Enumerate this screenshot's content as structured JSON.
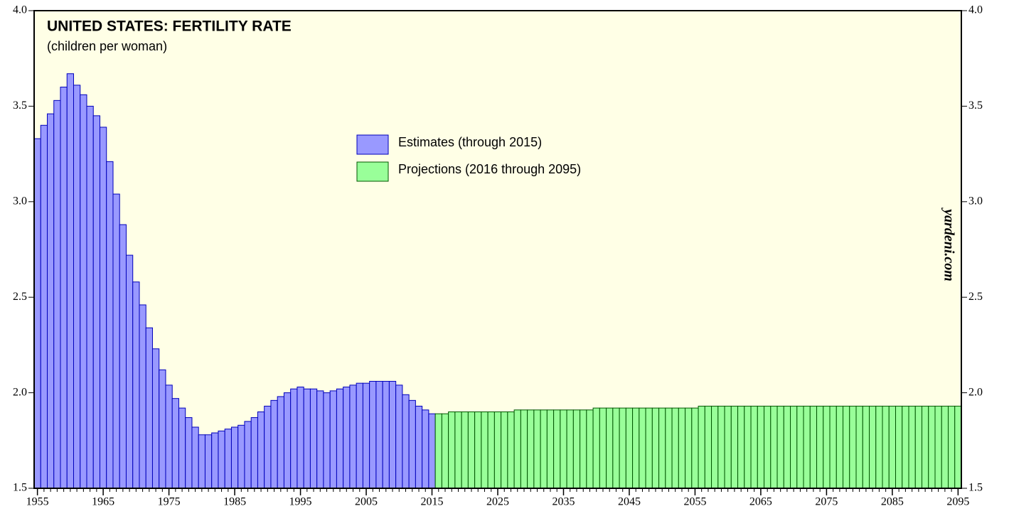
{
  "chart_data": {
    "type": "bar",
    "title": "UNITED STATES: FERTILITY RATE",
    "subtitle": "(children per woman)",
    "annotation": "yardeni.com",
    "xlim": [
      1954.5,
      2095.5
    ],
    "xticks": [
      1955,
      1965,
      1975,
      1985,
      1995,
      2005,
      2015,
      2025,
      2035,
      2045,
      2055,
      2065,
      2075,
      2085,
      2095
    ],
    "ylim": [
      1.5,
      4.0
    ],
    "yticks": [
      1.5,
      {
        "value": 2,
        "label": "2.0"
      },
      2.5,
      {
        "value": 3,
        "label": "3.0"
      },
      3.5,
      {
        "value": 4,
        "label": "4.0"
      }
    ],
    "legend": "top",
    "series": [
      {
        "name": "Estimates (through 2015)",
        "color": "#9999ff",
        "edge": "#0000bb",
        "x": [
          1955,
          1956,
          1957,
          1958,
          1959,
          1960,
          1961,
          1962,
          1963,
          1964,
          1965,
          1966,
          1967,
          1968,
          1969,
          1970,
          1971,
          1972,
          1973,
          1974,
          1975,
          1976,
          1977,
          1978,
          1979,
          1980,
          1981,
          1982,
          1983,
          1984,
          1985,
          1986,
          1987,
          1988,
          1989,
          1990,
          1991,
          1992,
          1993,
          1994,
          1995,
          1996,
          1997,
          1998,
          1999,
          2000,
          2001,
          2002,
          2003,
          2004,
          2005,
          2006,
          2007,
          2008,
          2009,
          2010,
          2011,
          2012,
          2013,
          2014,
          2015
        ],
        "values": [
          3.33,
          3.4,
          3.46,
          3.53,
          3.6,
          3.67,
          3.61,
          3.56,
          3.5,
          3.45,
          3.39,
          3.21,
          3.04,
          2.88,
          2.72,
          2.58,
          2.46,
          2.34,
          2.23,
          2.12,
          2.04,
          1.97,
          1.92,
          1.87,
          1.82,
          1.78,
          1.78,
          1.79,
          1.8,
          1.81,
          1.82,
          1.83,
          1.85,
          1.87,
          1.9,
          1.93,
          1.96,
          1.98,
          2.0,
          2.02,
          2.03,
          2.02,
          2.02,
          2.01,
          2.0,
          2.01,
          2.02,
          2.03,
          2.04,
          2.05,
          2.05,
          2.06,
          2.06,
          2.06,
          2.06,
          2.04,
          1.99,
          1.96,
          1.93,
          1.91,
          1.89
        ]
      },
      {
        "name": "Projections (2016 through 2095)",
        "color": "#99ff99",
        "edge": "#005500",
        "x": [
          2016,
          2017,
          2018,
          2019,
          2020,
          2021,
          2022,
          2023,
          2024,
          2025,
          2026,
          2027,
          2028,
          2029,
          2030,
          2031,
          2032,
          2033,
          2034,
          2035,
          2036,
          2037,
          2038,
          2039,
          2040,
          2041,
          2042,
          2043,
          2044,
          2045,
          2046,
          2047,
          2048,
          2049,
          2050,
          2051,
          2052,
          2053,
          2054,
          2055,
          2056,
          2057,
          2058,
          2059,
          2060,
          2061,
          2062,
          2063,
          2064,
          2065,
          2066,
          2067,
          2068,
          2069,
          2070,
          2071,
          2072,
          2073,
          2074,
          2075,
          2076,
          2077,
          2078,
          2079,
          2080,
          2081,
          2082,
          2083,
          2084,
          2085,
          2086,
          2087,
          2088,
          2089,
          2090,
          2091,
          2092,
          2093,
          2094,
          2095
        ],
        "values": [
          1.89,
          1.89,
          1.9,
          1.9,
          1.9,
          1.9,
          1.9,
          1.9,
          1.9,
          1.9,
          1.9,
          1.9,
          1.91,
          1.91,
          1.91,
          1.91,
          1.91,
          1.91,
          1.91,
          1.91,
          1.91,
          1.91,
          1.91,
          1.91,
          1.92,
          1.92,
          1.92,
          1.92,
          1.92,
          1.92,
          1.92,
          1.92,
          1.92,
          1.92,
          1.92,
          1.92,
          1.92,
          1.92,
          1.92,
          1.92,
          1.93,
          1.93,
          1.93,
          1.93,
          1.93,
          1.93,
          1.93,
          1.93,
          1.93,
          1.93,
          1.93,
          1.93,
          1.93,
          1.93,
          1.93,
          1.93,
          1.93,
          1.93,
          1.93,
          1.93,
          1.93,
          1.93,
          1.93,
          1.93,
          1.93,
          1.93,
          1.93,
          1.93,
          1.93,
          1.93,
          1.93,
          1.93,
          1.93,
          1.93,
          1.93,
          1.93,
          1.93,
          1.93,
          1.93,
          1.93
        ]
      }
    ]
  }
}
